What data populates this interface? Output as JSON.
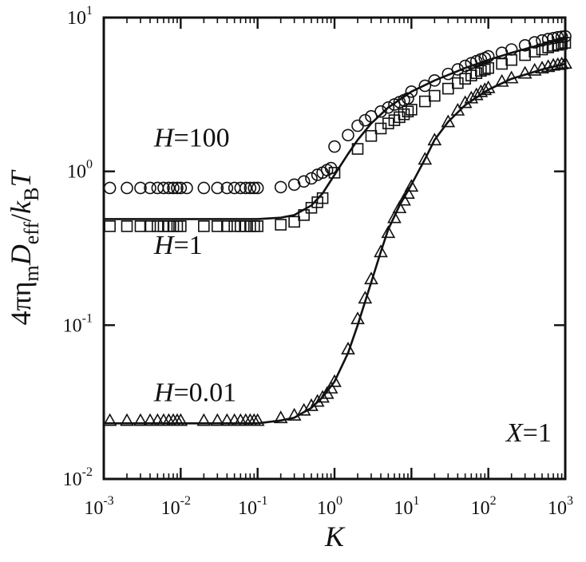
{
  "chart_data": {
    "type": "scatter",
    "title": "",
    "x_scale": "log",
    "y_scale": "log",
    "xlim": [
      0.001,
      1000
    ],
    "ylim": [
      0.01,
      10
    ],
    "x_ticks": [
      {
        "mant": "10",
        "exp": "-3",
        "value": 0.001
      },
      {
        "mant": "10",
        "exp": "-2",
        "value": 0.01
      },
      {
        "mant": "10",
        "exp": "-1",
        "value": 0.1
      },
      {
        "mant": "10",
        "exp": "0",
        "value": 1
      },
      {
        "mant": "10",
        "exp": "1",
        "value": 10
      },
      {
        "mant": "10",
        "exp": "2",
        "value": 100
      },
      {
        "mant": "10",
        "exp": "3",
        "value": 1000
      }
    ],
    "y_ticks": [
      {
        "mant": "10",
        "exp": "-2",
        "value": 0.01
      },
      {
        "mant": "10",
        "exp": "-1",
        "value": 0.1
      },
      {
        "mant": "10",
        "exp": "0",
        "value": 1
      },
      {
        "mant": "10",
        "exp": "1",
        "value": 10
      }
    ],
    "xlabel": "K",
    "ylabel": {
      "parts": [
        {
          "text": "4πη",
          "style": "normal"
        },
        {
          "text": "m",
          "style": "sub"
        },
        {
          "text": "D",
          "style": "italic"
        },
        {
          "text": "eff",
          "style": "sub"
        },
        {
          "text": "/",
          "style": "normal"
        },
        {
          "text": "k",
          "style": "italic"
        },
        {
          "text": "B",
          "style": "sub"
        },
        {
          "text": "T",
          "style": "italic"
        }
      ]
    },
    "annotations": [
      {
        "name": "label-h100",
        "italic": "H",
        "text": "=100",
        "at": [
          0.0045,
          1.45
        ]
      },
      {
        "name": "label-h1",
        "italic": "H",
        "text": "=1",
        "at": [
          0.0045,
          0.29
        ]
      },
      {
        "name": "label-h001",
        "italic": "H",
        "text": "=0.01",
        "at": [
          0.0045,
          0.032
        ]
      },
      {
        "name": "label-x1",
        "italic": "X",
        "text": "=1",
        "at": [
          170,
          0.0175
        ]
      }
    ],
    "series": [
      {
        "marker": "circle",
        "x": [
          0.0012,
          0.002,
          0.003,
          0.004,
          0.005,
          0.006,
          0.007,
          0.008,
          0.009,
          0.01,
          0.012,
          0.02,
          0.03,
          0.04,
          0.05,
          0.06,
          0.07,
          0.08,
          0.09,
          0.1,
          0.2,
          0.3,
          0.4,
          0.5,
          0.6,
          0.7,
          0.8,
          0.9,
          1,
          1.5,
          2,
          2.5,
          3,
          4,
          5,
          6,
          7,
          8,
          9,
          10,
          15,
          20,
          30,
          40,
          50,
          60,
          70,
          80,
          90,
          100,
          150,
          200,
          300,
          400,
          500,
          600,
          700,
          800,
          900,
          1000
        ],
        "y": [
          0.78,
          0.78,
          0.78,
          0.78,
          0.78,
          0.78,
          0.78,
          0.78,
          0.78,
          0.78,
          0.78,
          0.78,
          0.78,
          0.78,
          0.78,
          0.78,
          0.78,
          0.78,
          0.78,
          0.78,
          0.79,
          0.82,
          0.86,
          0.9,
          0.95,
          0.98,
          1.02,
          1.05,
          1.45,
          1.72,
          1.98,
          2.15,
          2.28,
          2.45,
          2.6,
          2.72,
          2.82,
          2.9,
          2.98,
          3.3,
          3.6,
          3.9,
          4.3,
          4.6,
          4.85,
          5.05,
          5.2,
          5.35,
          5.45,
          5.6,
          5.9,
          6.2,
          6.6,
          6.9,
          7.1,
          7.25,
          7.35,
          7.45,
          7.5,
          7.55
        ]
      },
      {
        "marker": "square",
        "x": [
          0.0012,
          0.002,
          0.003,
          0.004,
          0.005,
          0.006,
          0.007,
          0.008,
          0.009,
          0.01,
          0.02,
          0.03,
          0.04,
          0.05,
          0.06,
          0.07,
          0.08,
          0.09,
          0.1,
          0.2,
          0.3,
          0.4,
          0.5,
          0.6,
          0.7,
          1,
          2,
          3,
          4,
          5,
          6,
          7,
          8,
          9,
          10,
          15,
          20,
          30,
          40,
          50,
          60,
          70,
          80,
          90,
          100,
          150,
          200,
          300,
          400,
          500,
          600,
          700,
          800,
          900,
          1000
        ],
        "y": [
          0.44,
          0.44,
          0.44,
          0.44,
          0.44,
          0.44,
          0.44,
          0.44,
          0.44,
          0.44,
          0.44,
          0.44,
          0.44,
          0.44,
          0.44,
          0.44,
          0.44,
          0.44,
          0.44,
          0.45,
          0.47,
          0.52,
          0.58,
          0.63,
          0.67,
          0.98,
          1.4,
          1.7,
          1.9,
          2.05,
          2.15,
          2.25,
          2.35,
          2.45,
          2.52,
          2.85,
          3.1,
          3.45,
          3.75,
          4,
          4.2,
          4.35,
          4.5,
          4.6,
          4.7,
          5,
          5.3,
          5.7,
          6,
          6.2,
          6.4,
          6.55,
          6.65,
          6.75,
          6.85
        ]
      },
      {
        "marker": "triangle",
        "x": [
          0.0012,
          0.002,
          0.003,
          0.004,
          0.005,
          0.006,
          0.007,
          0.008,
          0.009,
          0.01,
          0.02,
          0.03,
          0.04,
          0.05,
          0.06,
          0.07,
          0.08,
          0.09,
          0.1,
          0.2,
          0.3,
          0.4,
          0.5,
          0.6,
          0.7,
          0.8,
          0.9,
          1,
          1.5,
          2,
          2.5,
          3,
          4,
          5,
          6,
          7,
          8,
          9,
          10,
          15,
          20,
          30,
          40,
          50,
          60,
          70,
          80,
          90,
          100,
          150,
          200,
          300,
          400,
          500,
          600,
          700,
          800,
          900,
          1000
        ],
        "y": [
          0.024,
          0.024,
          0.024,
          0.024,
          0.024,
          0.024,
          0.024,
          0.024,
          0.024,
          0.024,
          0.024,
          0.024,
          0.024,
          0.024,
          0.024,
          0.024,
          0.024,
          0.024,
          0.024,
          0.025,
          0.026,
          0.028,
          0.03,
          0.032,
          0.034,
          0.036,
          0.039,
          0.043,
          0.07,
          0.11,
          0.15,
          0.2,
          0.3,
          0.4,
          0.5,
          0.58,
          0.65,
          0.72,
          0.8,
          1.2,
          1.6,
          2.1,
          2.5,
          2.8,
          3,
          3.15,
          3.3,
          3.4,
          3.5,
          3.85,
          4.05,
          4.35,
          4.55,
          4.7,
          4.8,
          4.9,
          4.95,
          5,
          5.05
        ]
      }
    ],
    "fit_lines": [
      {
        "name": "fit-h100",
        "x": [
          0.001,
          0.01,
          0.1,
          0.2,
          0.3,
          0.5,
          0.7,
          1,
          1.5,
          2,
          3,
          5,
          10,
          20,
          50,
          100,
          200,
          500,
          1000
        ],
        "y": [
          0.49,
          0.49,
          0.49,
          0.5,
          0.52,
          0.6,
          0.72,
          0.95,
          1.3,
          1.6,
          2.05,
          2.6,
          3.3,
          3.9,
          4.7,
          5.3,
          5.9,
          6.7,
          7.3
        ]
      },
      {
        "name": "fit-h001",
        "x": [
          0.001,
          0.01,
          0.1,
          0.2,
          0.3,
          0.5,
          0.7,
          1,
          1.5,
          2,
          3,
          4,
          5,
          7,
          10,
          15,
          20,
          30,
          50,
          100,
          200,
          500,
          1000
        ],
        "y": [
          0.023,
          0.023,
          0.023,
          0.024,
          0.025,
          0.029,
          0.034,
          0.043,
          0.066,
          0.1,
          0.19,
          0.3,
          0.42,
          0.6,
          0.82,
          1.2,
          1.6,
          2.1,
          2.7,
          3.4,
          4.0,
          4.6,
          5.0
        ]
      }
    ]
  }
}
